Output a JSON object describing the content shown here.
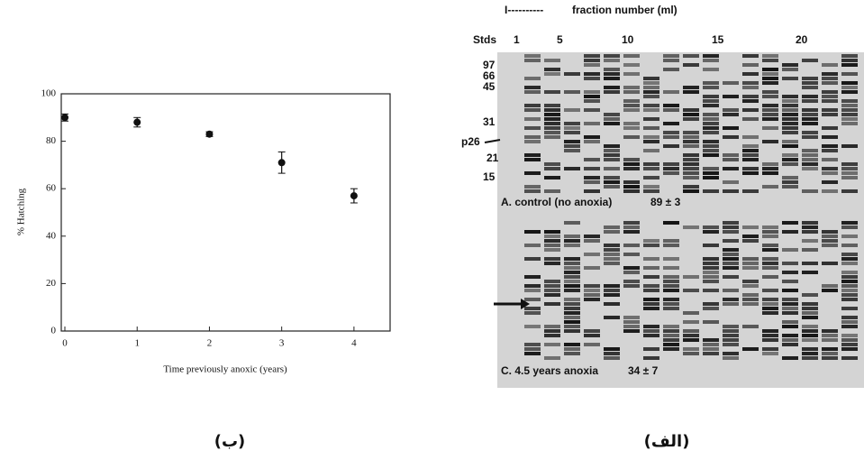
{
  "chart_data": {
    "type": "scatter",
    "x_label": "Time previously anoxic (years)",
    "y_label": "% Hatching",
    "x": [
      0,
      1,
      2,
      3,
      4
    ],
    "values": [
      90,
      88,
      83,
      71,
      57
    ],
    "errors": [
      1.5,
      2,
      1,
      4.5,
      3
    ],
    "color": "#111111",
    "xlim": [
      -0.05,
      4.5
    ],
    "ylim": [
      0,
      100
    ],
    "xticks": [
      0,
      1,
      2,
      3,
      4
    ],
    "yticks": [
      0,
      20,
      40,
      60,
      80,
      100
    ]
  },
  "gel": {
    "header": "fraction number (ml)",
    "stds": "Stds",
    "lanes": [
      "1",
      "5",
      "10",
      "15",
      "20"
    ],
    "markers": [
      "97",
      "66",
      "45",
      "31",
      "21",
      "15"
    ],
    "arrow_label": "p26",
    "panel_a": "A. control (no anoxia)",
    "panel_a_value": "89 ± 3",
    "panel_c": "C. 4.5 years anoxia",
    "panel_c_value": "34 ± 7"
  },
  "captions": {
    "left": "(ب)",
    "right": "(الف)"
  }
}
